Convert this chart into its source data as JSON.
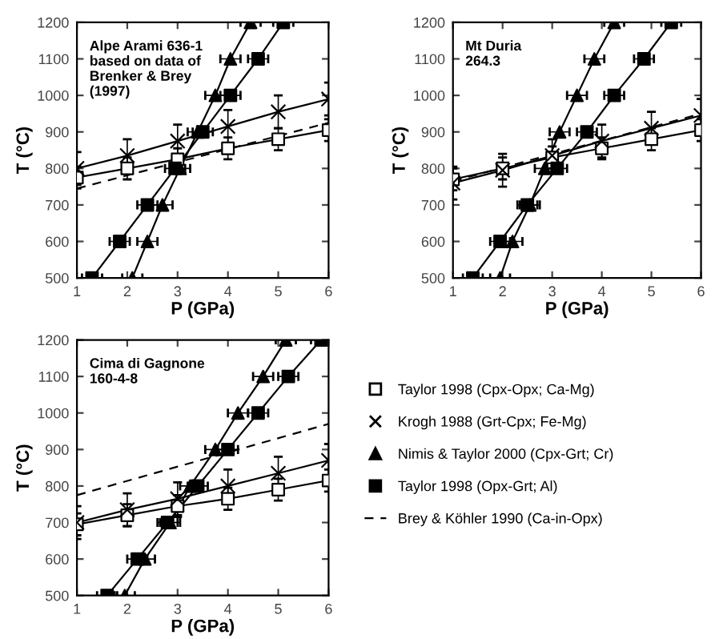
{
  "chart_data": [
    {
      "type": "line",
      "title": "Alpe Arami 636-1\nbased on data of\nBrenker & Brey\n(1997)",
      "xlabel": "P (GPa)",
      "ylabel": "T (°C)",
      "xlim": [
        1,
        6
      ],
      "ylim": [
        500,
        1200
      ],
      "xticks": [
        1,
        2,
        3,
        4,
        5,
        6
      ],
      "yticks": [
        500,
        600,
        700,
        800,
        900,
        1000,
        1100,
        1200
      ],
      "grid": false,
      "legend": false,
      "series": [
        {
          "color": "#ffffff",
          "marker": "square",
          "line_style": "solid",
          "x": [
            1,
            2,
            3,
            4,
            5,
            6
          ],
          "values": [
            775,
            800,
            825,
            855,
            880,
            905
          ],
          "errors": [
            30,
            30,
            30,
            30,
            30,
            30
          ]
        },
        {
          "color": "#000000",
          "marker": "cross",
          "line_style": "solid",
          "x": [
            1,
            2,
            3,
            4,
            5,
            6
          ],
          "values": [
            800,
            835,
            875,
            915,
            955,
            990
          ],
          "errors": [
            45,
            45,
            45,
            45,
            45,
            45
          ]
        },
        {
          "color": "#000000",
          "marker": "triangle",
          "line_style": "solid",
          "x": [
            2.1,
            2.4,
            2.7,
            3.05,
            3.4,
            3.75,
            4.05,
            4.45
          ],
          "values": [
            500,
            600,
            700,
            800,
            900,
            1000,
            1100,
            1200
          ],
          "xerrors": [
            0.2,
            0.2,
            0.2,
            0.2,
            0.2,
            0.2,
            0.2,
            0.2
          ]
        },
        {
          "color": "#000000",
          "marker": "square",
          "line_style": "solid",
          "x": [
            1.3,
            1.85,
            2.4,
            2.95,
            3.5,
            4.05,
            4.6,
            5.1
          ],
          "values": [
            500,
            600,
            700,
            800,
            900,
            1000,
            1100,
            1200
          ],
          "xerrors": [
            0.2,
            0.2,
            0.2,
            0.2,
            0.2,
            0.2,
            0.2,
            0.2
          ]
        },
        {
          "color": "#000000",
          "marker": "none",
          "line_style": "dashed",
          "x": [
            1,
            6
          ],
          "values": [
            745,
            925
          ]
        }
      ]
    },
    {
      "type": "line",
      "title": "Mt Duria\n264.3",
      "xlabel": "P (GPa)",
      "ylabel": "T (°C)",
      "xlim": [
        1,
        6
      ],
      "ylim": [
        500,
        1200
      ],
      "xticks": [
        1,
        2,
        3,
        4,
        5,
        6
      ],
      "yticks": [
        500,
        600,
        700,
        800,
        900,
        1000,
        1100,
        1200
      ],
      "grid": false,
      "legend": false,
      "series": [
        {
          "color": "#ffffff",
          "marker": "square",
          "line_style": "solid",
          "x": [
            1,
            2,
            3,
            4,
            5,
            6
          ],
          "values": [
            770,
            800,
            830,
            855,
            880,
            905
          ],
          "errors": [
            30,
            30,
            30,
            30,
            30,
            30
          ]
        },
        {
          "color": "#000000",
          "marker": "cross",
          "line_style": "solid",
          "x": [
            1,
            2,
            3,
            4,
            5,
            6
          ],
          "values": [
            760,
            795,
            835,
            875,
            910,
            945
          ],
          "errors": [
            45,
            45,
            45,
            45,
            45,
            45
          ]
        },
        {
          "color": "#000000",
          "marker": "triangle",
          "line_style": "solid",
          "x": [
            1.95,
            2.2,
            2.55,
            2.85,
            3.15,
            3.5,
            3.85,
            4.25
          ],
          "values": [
            500,
            600,
            700,
            800,
            900,
            1000,
            1100,
            1200
          ],
          "xerrors": [
            0.2,
            0.2,
            0.2,
            0.2,
            0.2,
            0.2,
            0.2,
            0.2
          ]
        },
        {
          "color": "#000000",
          "marker": "square",
          "line_style": "solid",
          "x": [
            1.4,
            1.95,
            2.5,
            3.1,
            3.7,
            4.25,
            4.85,
            5.4
          ],
          "values": [
            500,
            600,
            700,
            800,
            900,
            1000,
            1100,
            1200
          ],
          "xerrors": [
            0.2,
            0.2,
            0.2,
            0.2,
            0.2,
            0.2,
            0.2,
            0.2
          ]
        },
        {
          "color": "#000000",
          "marker": "none",
          "line_style": "dashed",
          "x": [
            1,
            6
          ],
          "values": [
            765,
            950
          ]
        }
      ]
    },
    {
      "type": "line",
      "title": "Cima di Gagnone\n160-4-8",
      "xlabel": "P (GPa)",
      "ylabel": "T (°C)",
      "xlim": [
        1,
        6
      ],
      "ylim": [
        500,
        1200
      ],
      "xticks": [
        1,
        2,
        3,
        4,
        5,
        6
      ],
      "yticks": [
        500,
        600,
        700,
        800,
        900,
        1000,
        1100,
        1200
      ],
      "grid": false,
      "legend": "right",
      "series": [
        {
          "name": "Taylor 1998 (Cpx-Opx; Ca-Mg)",
          "color": "#ffffff",
          "marker": "square",
          "line_style": "solid",
          "x": [
            1,
            2,
            3,
            4,
            5,
            6
          ],
          "values": [
            695,
            720,
            745,
            765,
            790,
            815
          ],
          "errors": [
            30,
            30,
            30,
            30,
            30,
            30
          ]
        },
        {
          "name": "Krogh 1988 (Grt-Cpx; Fe-Mg)",
          "color": "#000000",
          "marker": "cross",
          "line_style": "solid",
          "x": [
            1,
            2,
            3,
            4,
            5,
            6
          ],
          "values": [
            700,
            735,
            765,
            800,
            835,
            870
          ],
          "errors": [
            45,
            45,
            45,
            45,
            45,
            45
          ]
        },
        {
          "name": "Nimis & Taylor 2000 (Cpx-Grt; Cr)",
          "color": "#000000",
          "marker": "triangle",
          "line_style": "solid",
          "x": [
            1.95,
            2.35,
            2.85,
            3.25,
            3.75,
            4.2,
            4.7,
            5.15
          ],
          "values": [
            500,
            600,
            700,
            800,
            900,
            1000,
            1100,
            1200
          ],
          "xerrors": [
            0.2,
            0.2,
            0.2,
            0.2,
            0.2,
            0.2,
            0.2,
            0.2
          ]
        },
        {
          "name": "Taylor 1998 (Opx-Grt; Al)",
          "color": "#000000",
          "marker": "square",
          "line_style": "solid",
          "x": [
            1.6,
            2.2,
            2.8,
            3.4,
            4.0,
            4.6,
            5.2,
            5.85
          ],
          "values": [
            500,
            600,
            700,
            800,
            900,
            1000,
            1100,
            1200
          ],
          "xerrors": [
            0.2,
            0.2,
            0.2,
            0.2,
            0.2,
            0.2,
            0.2,
            0.2
          ]
        },
        {
          "name": "Brey & Köhler 1990 (Ca-in-Opx)",
          "color": "#000000",
          "marker": "none",
          "line_style": "dashed",
          "x": [
            1,
            6
          ],
          "values": [
            775,
            970
          ]
        }
      ]
    }
  ]
}
